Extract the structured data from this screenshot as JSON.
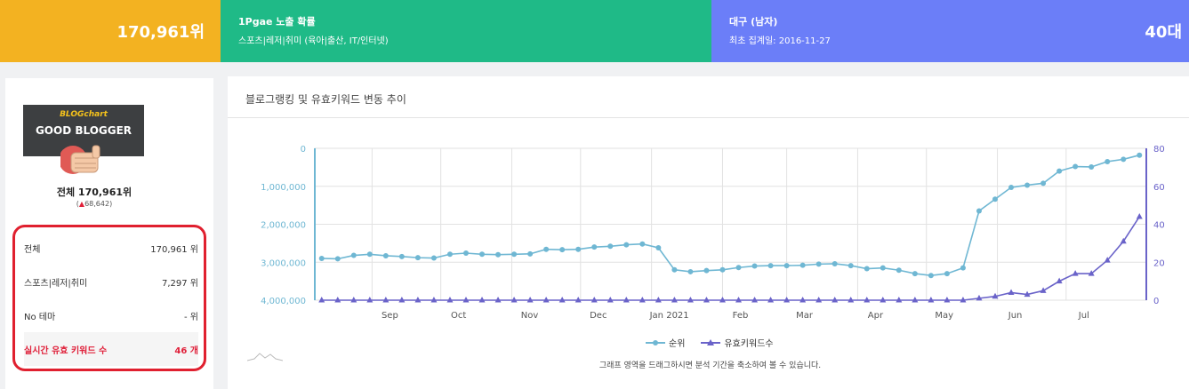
{
  "topbar": {
    "rank_value": "170,961위",
    "topic": {
      "line1": "1Pgae 노출 확률",
      "line2": "스포츠|레저|취미 (육아|출산, IT/인터넷)"
    },
    "age": {
      "line1": "대구 (남자)",
      "line2": "최초 집계일: 2016-11-27",
      "value": "40대"
    }
  },
  "profile": {
    "badge_brand": "BLOGchart",
    "badge_title": "GOOD BLOGGER",
    "total_label": "전체 170,961위",
    "delta_arrow": "▲",
    "delta_value": "68,642"
  },
  "stats": [
    {
      "key": "전체",
      "value": "170,961 위"
    },
    {
      "key": "스포츠|레저|취미",
      "value": "7,297 위"
    },
    {
      "key": "No 테마",
      "value": "- 위"
    },
    {
      "key": "실시간 유효 키워드 수",
      "value": "46 개"
    }
  ],
  "chart_panel": {
    "title": "블로그랭킹 및 유효키워드 변동 추이",
    "hint": "그래프 영역을 드래그하시면 분석 기간을 축소하여 볼 수 있습니다."
  },
  "chart_data": {
    "type": "line",
    "x": [
      "2020-08-10",
      "2020-08-17",
      "2020-08-24",
      "2020-08-31",
      "2020-09-07",
      "2020-09-14",
      "2020-09-21",
      "2020-09-28",
      "2020-10-05",
      "2020-10-12",
      "2020-10-19",
      "2020-10-26",
      "2020-11-02",
      "2020-11-09",
      "2020-11-16",
      "2020-11-23",
      "2020-11-30",
      "2020-12-07",
      "2020-12-14",
      "2020-12-21",
      "2020-12-28",
      "2021-01-04",
      "2021-01-11",
      "2021-01-18",
      "2021-01-25",
      "2021-02-01",
      "2021-02-08",
      "2021-02-15",
      "2021-02-22",
      "2021-03-01",
      "2021-03-08",
      "2021-03-15",
      "2021-03-22",
      "2021-03-29",
      "2021-04-05",
      "2021-04-12",
      "2021-04-19",
      "2021-04-26",
      "2021-05-03",
      "2021-05-10",
      "2021-05-17",
      "2021-05-24",
      "2021-05-31",
      "2021-06-07",
      "2021-06-14",
      "2021-06-21",
      "2021-06-28",
      "2021-07-05",
      "2021-07-12",
      "2021-07-19",
      "2021-07-26",
      "2021-08-02"
    ],
    "x_ticks": [
      "Sep",
      "Oct",
      "Nov",
      "Dec",
      "Jan 2021",
      "Feb",
      "Mar",
      "Apr",
      "May",
      "Jun",
      "Jul"
    ],
    "series": [
      {
        "name": "순위",
        "axis": "left",
        "color": "#6fb7d3",
        "values": [
          2900000,
          2910000,
          2820000,
          2790000,
          2830000,
          2850000,
          2880000,
          2890000,
          2790000,
          2760000,
          2790000,
          2800000,
          2790000,
          2780000,
          2660000,
          2670000,
          2660000,
          2600000,
          2580000,
          2540000,
          2520000,
          2620000,
          3200000,
          3250000,
          3220000,
          3200000,
          3140000,
          3100000,
          3090000,
          3090000,
          3080000,
          3050000,
          3040000,
          3090000,
          3170000,
          3150000,
          3210000,
          3300000,
          3350000,
          3300000,
          3150000,
          1650000,
          1340000,
          1030000,
          970000,
          920000,
          600000,
          480000,
          490000,
          350000,
          290000,
          180000
        ]
      },
      {
        "name": "유효키워드수",
        "axis": "right",
        "color": "#6a63c9",
        "values": [
          0,
          0,
          0,
          0,
          0,
          0,
          0,
          0,
          0,
          0,
          0,
          0,
          0,
          0,
          0,
          0,
          0,
          0,
          0,
          0,
          0,
          0,
          0,
          0,
          0,
          0,
          0,
          0,
          0,
          0,
          0,
          0,
          0,
          0,
          0,
          0,
          0,
          0,
          0,
          0,
          0,
          1,
          2,
          4,
          3,
          5,
          10,
          14,
          14,
          21,
          31,
          44
        ]
      }
    ],
    "y_left": {
      "min": 0,
      "max": 4000000,
      "reversed": true,
      "ticks": [
        "0",
        "1,000,000",
        "2,000,000",
        "3,000,000",
        "4,000,000"
      ]
    },
    "y_right": {
      "min": 0,
      "max": 80,
      "ticks": [
        "0",
        "20",
        "40",
        "60",
        "80"
      ]
    },
    "legend_position": "bottom-center",
    "grid": true
  },
  "colors": {
    "rank_tile": "#f3b221",
    "topic_tile": "#1fba87",
    "age_tile": "#6b7ef8",
    "highlight": "#e0203a"
  }
}
